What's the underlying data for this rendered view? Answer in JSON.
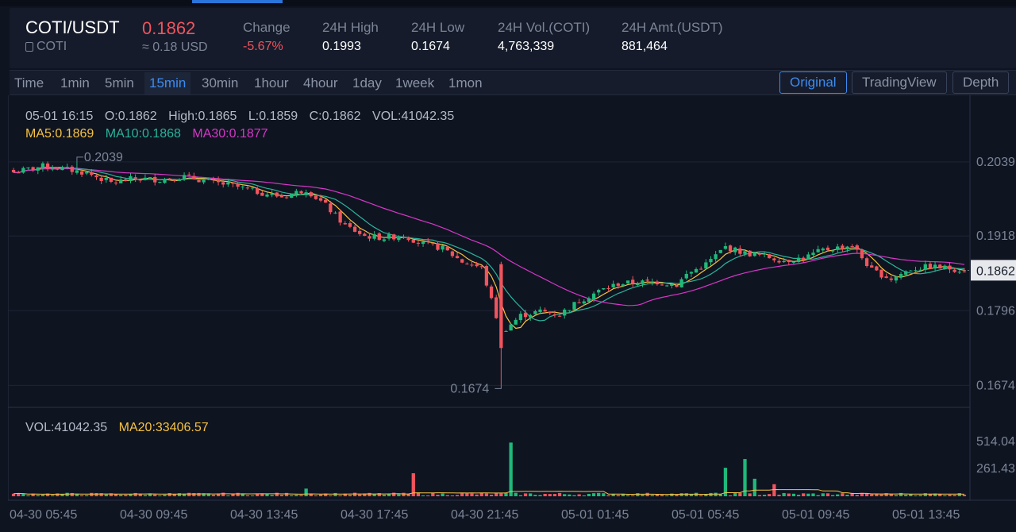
{
  "header": {
    "pair": "COTI/USDT",
    "coin": "COTI",
    "price": "0.1862",
    "price_usd": "≈ 0.18 USD",
    "stats": [
      {
        "label": "Change",
        "value": "-5.67%",
        "negative": true
      },
      {
        "label": "24H High",
        "value": "0.1993"
      },
      {
        "label": "24H Low",
        "value": "0.1674"
      },
      {
        "label": "24H Vol.(COTI)",
        "value": "4,763,339"
      },
      {
        "label": "24H Amt.(USDT)",
        "value": "881,464"
      }
    ]
  },
  "toolbar": {
    "timeframes": [
      "Time",
      "1min",
      "5min",
      "15min",
      "30min",
      "1hour",
      "4hour",
      "1day",
      "1week",
      "1mon"
    ],
    "active_timeframe": "15min",
    "views": [
      "Original",
      "TradingView",
      "Depth"
    ],
    "active_view": "Original"
  },
  "legend": {
    "time": "05-01 16:15",
    "open": "O:0.1862",
    "high": "High:0.1865",
    "low": "L:0.1859",
    "close": "C:0.1862",
    "vol": "VOL:41042.35",
    "ma5": "MA5:0.1869",
    "ma10": "MA10:0.1868",
    "ma30": "MA30:0.1877",
    "vol_label": "VOL:41042.35",
    "vol_ma20": "MA20:33406.57"
  },
  "colors": {
    "up": "#1fb97a",
    "down": "#f0545d",
    "ma5": "#f5c242",
    "ma10": "#2bb39a",
    "ma30": "#d637c8",
    "grid": "#1e2536",
    "axis_text": "#7b8496"
  },
  "chart_data": {
    "type": "candlestick",
    "price_axis_ticks": [
      "0.2039",
      "0.1918",
      "0.1796",
      "0.1674"
    ],
    "current_price_tag": "0.1862",
    "max_label": "0.2039",
    "min_label": "0.1674",
    "volume_axis_ticks": [
      "514.04",
      "261.43"
    ],
    "x_ticks": [
      "04-30 05:45",
      "04-30 09:45",
      "04-30 13:45",
      "04-30 17:45",
      "04-30 21:45",
      "05-01 01:45",
      "05-01 05:45",
      "05-01 09:45",
      "05-01 13:45"
    ],
    "price_range": [
      0.1642,
      0.207
    ],
    "close_anchors": [
      [
        0,
        0.2022
      ],
      [
        6,
        0.2032
      ],
      [
        10,
        0.2028
      ],
      [
        15,
        0.2021
      ],
      [
        20,
        0.2005
      ],
      [
        25,
        0.2012
      ],
      [
        30,
        0.201
      ],
      [
        35,
        0.2015
      ],
      [
        40,
        0.2007
      ],
      [
        45,
        0.2
      ],
      [
        50,
        0.199
      ],
      [
        55,
        0.1982
      ],
      [
        60,
        0.1994
      ],
      [
        64,
        0.1968
      ],
      [
        68,
        0.1935
      ],
      [
        72,
        0.1918
      ],
      [
        76,
        0.1915
      ],
      [
        80,
        0.1919
      ],
      [
        84,
        0.1905
      ],
      [
        88,
        0.1898
      ],
      [
        92,
        0.1876
      ],
      [
        96,
        0.1866
      ],
      [
        100,
        0.176
      ],
      [
        104,
        0.1788
      ],
      [
        108,
        0.1795
      ],
      [
        112,
        0.179
      ],
      [
        116,
        0.1812
      ],
      [
        120,
        0.1828
      ],
      [
        124,
        0.184
      ],
      [
        128,
        0.1842
      ],
      [
        132,
        0.1843
      ],
      [
        136,
        0.1838
      ],
      [
        138,
        0.1855
      ],
      [
        142,
        0.1872
      ],
      [
        146,
        0.19
      ],
      [
        150,
        0.189
      ],
      [
        154,
        0.1885
      ],
      [
        158,
        0.1878
      ],
      [
        162,
        0.1882
      ],
      [
        166,
        0.1895
      ],
      [
        170,
        0.19
      ],
      [
        172,
        0.1903
      ],
      [
        176,
        0.1862
      ],
      [
        180,
        0.1848
      ],
      [
        184,
        0.1864
      ],
      [
        188,
        0.1868
      ],
      [
        192,
        0.1865
      ],
      [
        195,
        0.1862
      ]
    ],
    "candle_count": 196,
    "volume_spikes": [
      [
        82,
        0.42
      ],
      [
        102,
        0.98
      ],
      [
        146,
        0.52
      ],
      [
        150,
        0.68
      ],
      [
        152,
        0.32
      ],
      [
        156,
        0.22
      ],
      [
        60,
        0.14
      ]
    ]
  }
}
